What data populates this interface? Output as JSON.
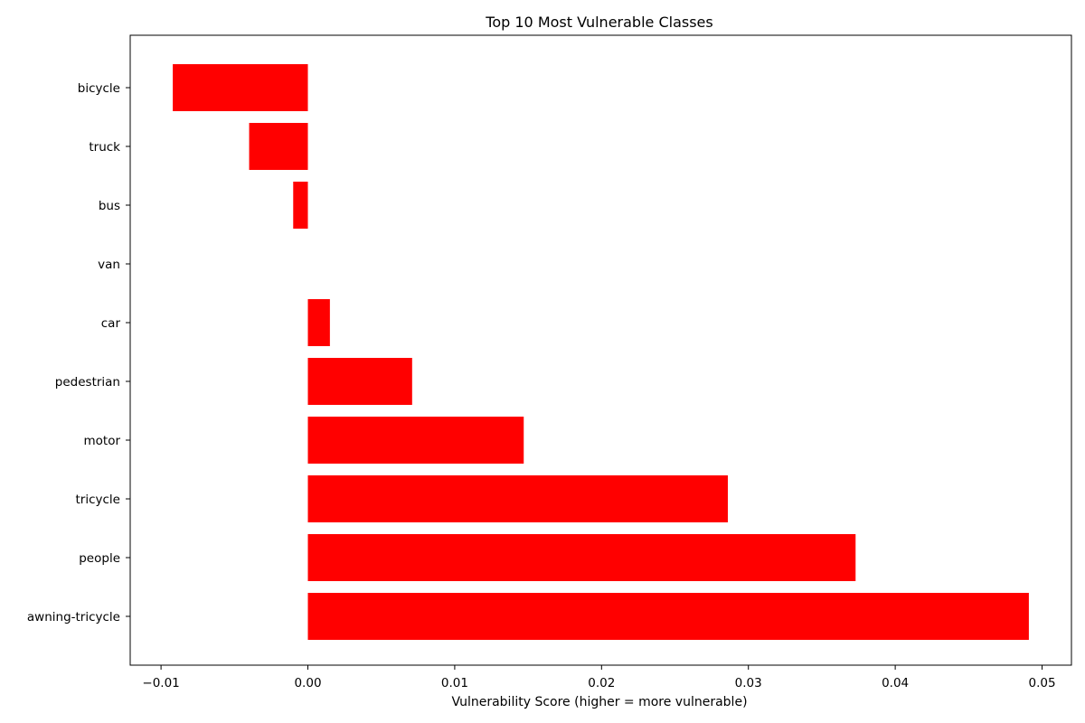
{
  "chart_data": {
    "type": "bar",
    "orientation": "horizontal",
    "title": "Top 10 Most Vulnerable Classes",
    "xlabel": "Vulnerability Score (higher = more vulnerable)",
    "ylabel": "",
    "categories": [
      "bicycle",
      "truck",
      "bus",
      "van",
      "car",
      "pedestrian",
      "motor",
      "tricycle",
      "people",
      "awning-tricycle"
    ],
    "values": [
      -0.0092,
      -0.004,
      -0.001,
      0.0,
      0.0015,
      0.0071,
      0.0147,
      0.0286,
      0.0373,
      0.0491
    ],
    "xlim": [
      -0.0121,
      0.052
    ],
    "xticks": [
      -0.01,
      0.0,
      0.01,
      0.02,
      0.03,
      0.04,
      0.05
    ],
    "xtick_labels": [
      "−0.01",
      "0.00",
      "0.01",
      "0.02",
      "0.03",
      "0.04",
      "0.05"
    ],
    "bar_color": "#ff0000",
    "grid": false,
    "legend": "none"
  }
}
